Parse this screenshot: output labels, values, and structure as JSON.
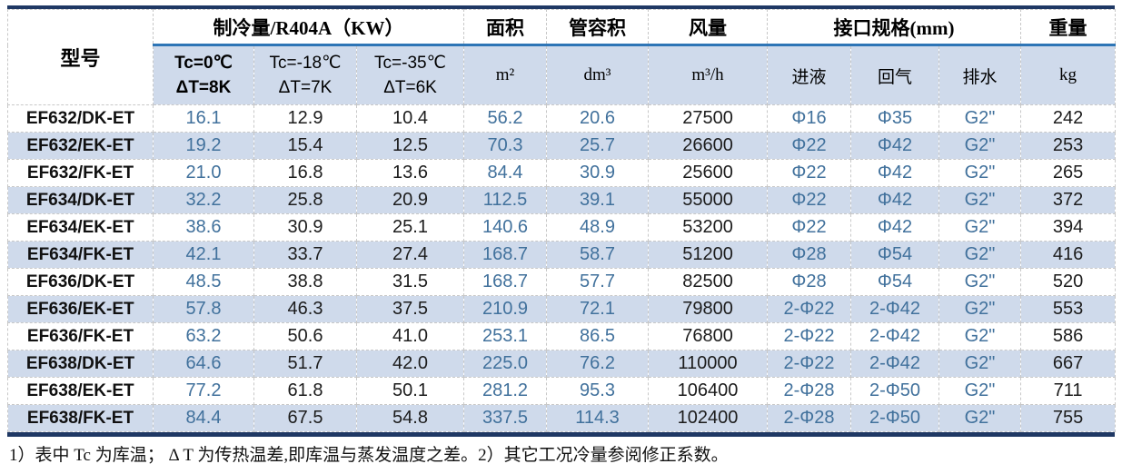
{
  "table": {
    "header": {
      "model": "型号",
      "cooling_group": "制冷量/R404A（KW）",
      "area": "面积",
      "tube_volume": "管容积",
      "air_flow": "风量",
      "connection_group": "接口规格(mm)",
      "weight": "重量",
      "tc0_line1": "Tc=0℃",
      "tc0_line2": "ΔT=8K",
      "tc18_line1": "Tc=-18℃",
      "tc18_line2": "ΔT=7K",
      "tc35_line1": "Tc=-35℃",
      "tc35_line2": "ΔT=6K",
      "area_unit": "m²",
      "tube_unit": "dm³",
      "air_unit": "m³/h",
      "liquid_inlet": "进液",
      "gas_return": "回气",
      "drain": "排水",
      "weight_unit": "kg"
    },
    "rows": [
      [
        "EF632/DK-ET",
        "16.1",
        "12.9",
        "10.4",
        "56.2",
        "20.6",
        "27500",
        "Φ16",
        "Φ35",
        "G2\"",
        "242"
      ],
      [
        "EF632/EK-ET",
        "19.2",
        "15.4",
        "12.5",
        "70.3",
        "25.7",
        "26600",
        "Φ22",
        "Φ42",
        "G2\"",
        "253"
      ],
      [
        "EF632/FK-ET",
        "21.0",
        "16.8",
        "13.6",
        "84.4",
        "30.9",
        "25600",
        "Φ22",
        "Φ42",
        "G2\"",
        "265"
      ],
      [
        "EF634/DK-ET",
        "32.2",
        "25.8",
        "20.9",
        "112.5",
        "39.1",
        "55000",
        "Φ22",
        "Φ42",
        "G2\"",
        "372"
      ],
      [
        "EF634/EK-ET",
        "38.6",
        "30.9",
        "25.1",
        "140.6",
        "48.9",
        "53200",
        "Φ22",
        "Φ42",
        "G2\"",
        "394"
      ],
      [
        "EF634/FK-ET",
        "42.1",
        "33.7",
        "27.4",
        "168.7",
        "58.7",
        "51200",
        "Φ28",
        "Φ54",
        "G2\"",
        "416"
      ],
      [
        "EF636/DK-ET",
        "48.5",
        "38.8",
        "31.5",
        "168.7",
        "57.7",
        "82500",
        "Φ28",
        "Φ54",
        "G2\"",
        "520"
      ],
      [
        "EF636/EK-ET",
        "57.8",
        "46.3",
        "37.5",
        "210.9",
        "72.1",
        "79800",
        "2-Φ22",
        "2-Φ42",
        "G2\"",
        "553"
      ],
      [
        "EF636/FK-ET",
        "63.2",
        "50.6",
        "41.0",
        "253.1",
        "86.5",
        "76800",
        "2-Φ22",
        "2-Φ42",
        "G2\"",
        "586"
      ],
      [
        "EF638/DK-ET",
        "64.6",
        "51.7",
        "42.0",
        "225.0",
        "76.2",
        "110000",
        "2-Φ22",
        "2-Φ42",
        "G2\"",
        "667"
      ],
      [
        "EF638/EK-ET",
        "77.2",
        "61.8",
        "50.1",
        "281.2",
        "95.3",
        "106400",
        "2-Φ28",
        "2-Φ50",
        "G2\"",
        "711"
      ],
      [
        "EF638/FK-ET",
        "84.4",
        "67.5",
        "54.8",
        "337.5",
        "114.3",
        "102400",
        "2-Φ28",
        "2-Φ50",
        "G2\"",
        "755"
      ]
    ]
  },
  "footnote": "1）表中 Tc 为库温； Δ T 为传热温差,即库温与蒸发温度之差。2）其它工况冷量参阅修正系数。",
  "colors": {
    "border_navy": "#1F3864",
    "header_rule_blue": "#2E75B6",
    "band_blue": "#CFDAEB",
    "value_blue": "#41719C",
    "value_black": "#1C1C1C"
  }
}
